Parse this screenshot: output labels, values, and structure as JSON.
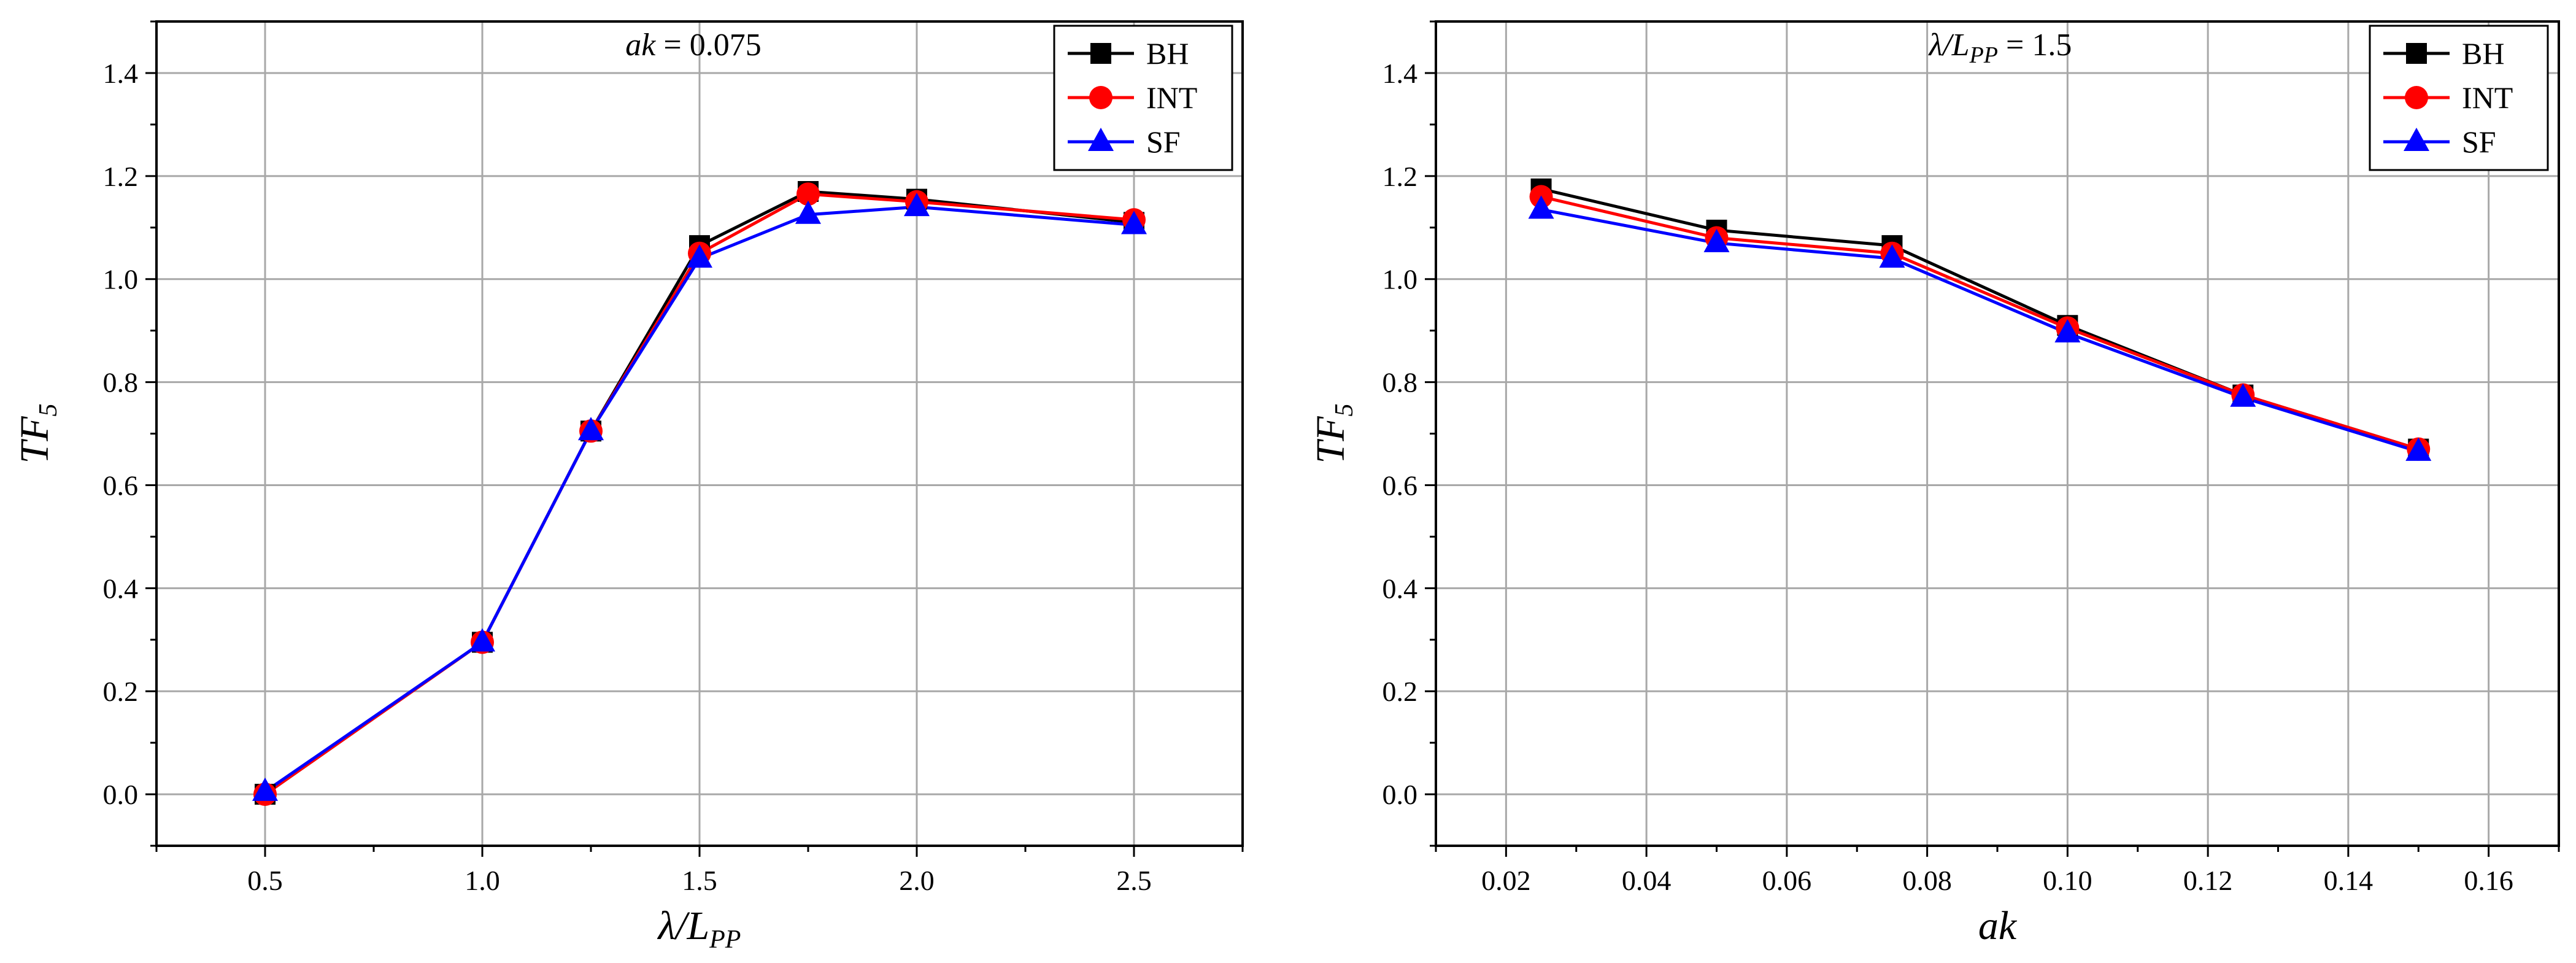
{
  "chart_data": [
    {
      "type": "line",
      "annotation": {
        "italic": "ak",
        "rest": " = 0.075"
      },
      "xlabel": {
        "main": "λ/L",
        "sub": "PP"
      },
      "ylabel": {
        "main": "TF",
        "sub": "5"
      },
      "xlim": [
        0.25,
        2.75
      ],
      "ylim": [
        -0.1,
        1.5
      ],
      "x_ticks": [
        0.5,
        1.0,
        1.5,
        2.0,
        2.5
      ],
      "x_tick_labels": [
        "0.5",
        "1.0",
        "1.5",
        "2.0",
        "2.5"
      ],
      "y_ticks": [
        0.0,
        0.2,
        0.4,
        0.6,
        0.8,
        1.0,
        1.2,
        1.4
      ],
      "y_tick_labels": [
        "0.0",
        "0.2",
        "0.4",
        "0.6",
        "0.8",
        "1.0",
        "1.2",
        "1.4"
      ],
      "grid": true,
      "legend_position": "top-right",
      "x": [
        0.5,
        1.0,
        1.25,
        1.5,
        1.75,
        2.0,
        2.5
      ],
      "series": [
        {
          "name": "BH",
          "color": "#000000",
          "marker": "square",
          "values": [
            0.0,
            0.295,
            0.705,
            1.065,
            1.17,
            1.155,
            1.11
          ]
        },
        {
          "name": "INT",
          "color": "#ff0000",
          "marker": "circle",
          "values": [
            0.0,
            0.295,
            0.705,
            1.05,
            1.165,
            1.15,
            1.115
          ]
        },
        {
          "name": "SF",
          "color": "#0000ff",
          "marker": "triangle",
          "values": [
            0.005,
            0.295,
            0.705,
            1.04,
            1.125,
            1.14,
            1.105
          ]
        }
      ]
    },
    {
      "type": "line",
      "annotation": {
        "italic": "λ/L",
        "sub": "PP",
        "rest": " = 1.5"
      },
      "xlabel": {
        "main": "ak",
        "sub": ""
      },
      "ylabel": {
        "main": "TF",
        "sub": "5"
      },
      "xlim": [
        0.01,
        0.17
      ],
      "ylim": [
        -0.1,
        1.5
      ],
      "x_ticks": [
        0.02,
        0.04,
        0.06,
        0.08,
        0.1,
        0.12,
        0.14,
        0.16
      ],
      "x_tick_labels": [
        "0.02",
        "0.04",
        "0.06",
        "0.08",
        "0.10",
        "0.12",
        "0.14",
        "0.16"
      ],
      "y_ticks": [
        0.0,
        0.2,
        0.4,
        0.6,
        0.8,
        1.0,
        1.2,
        1.4
      ],
      "y_tick_labels": [
        "0.0",
        "0.2",
        "0.4",
        "0.6",
        "0.8",
        "1.0",
        "1.2",
        "1.4"
      ],
      "grid": true,
      "legend_position": "top-right",
      "x": [
        0.025,
        0.05,
        0.075,
        0.1,
        0.125,
        0.15
      ],
      "series": [
        {
          "name": "BH",
          "color": "#000000",
          "marker": "square",
          "values": [
            1.175,
            1.095,
            1.065,
            0.91,
            0.775,
            0.67
          ]
        },
        {
          "name": "INT",
          "color": "#ff0000",
          "marker": "circle",
          "values": [
            1.16,
            1.08,
            1.05,
            0.905,
            0.775,
            0.67
          ]
        },
        {
          "name": "SF",
          "color": "#0000ff",
          "marker": "triangle",
          "values": [
            1.135,
            1.07,
            1.04,
            0.895,
            0.77,
            0.665
          ]
        }
      ]
    }
  ]
}
